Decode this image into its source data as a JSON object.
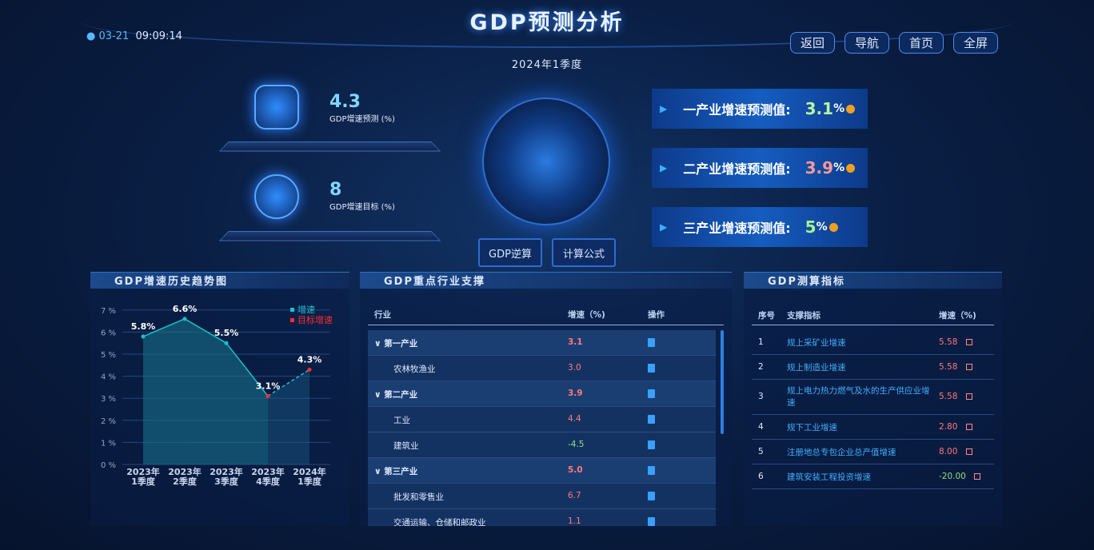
{
  "header": {
    "title": "GDP预测分析",
    "date": "03-21",
    "time": "09:09:14",
    "period": "2024年1季度",
    "nav": [
      "返回",
      "导航",
      "首页",
      "全屏"
    ]
  },
  "kpis": [
    {
      "value": "4.3",
      "label": "GDP增速预测 (%)"
    },
    {
      "value": "8",
      "label": "GDP增速目标 (%)"
    }
  ],
  "buttons": [
    "GDP逆算",
    "计算公式"
  ],
  "forecasts": [
    {
      "label": "一产业增速预测值:",
      "value": "3.1",
      "unit": "%",
      "color": "#b8f5a0"
    },
    {
      "label": "二产业增速预测值:",
      "value": "3.9",
      "unit": "%",
      "color": "#ff9a9a"
    },
    {
      "label": "三产业增速预测值:",
      "value": "5",
      "unit": "%",
      "color": "#a6f58a"
    }
  ],
  "panels": [
    "GDP增速历史趋势图",
    "GDP重点行业支撑",
    "GDP测算指标"
  ],
  "chart_data": {
    "type": "line",
    "categories": [
      "2023年\n1季度",
      "2023年\n2季度",
      "2023年\n3季度",
      "2023年\n4季度",
      "2024年\n1季度"
    ],
    "series": [
      {
        "name": "增速",
        "color": "#19c3c9",
        "values": [
          5.8,
          6.6,
          5.5,
          3.1,
          null
        ],
        "value_labels": [
          "5.8%",
          "6.6%",
          "5.5%",
          "3.1%",
          null
        ]
      },
      {
        "name": "目标增速",
        "color": "#ff2d2d",
        "values": [
          null,
          null,
          null,
          3.1,
          4.3
        ],
        "value_labels": [
          null,
          null,
          null,
          null,
          "4.3%"
        ]
      }
    ],
    "ylim": [
      0,
      7.5
    ],
    "yticks": [
      {
        "value": 0,
        "label": "0 %"
      },
      {
        "value": 1,
        "label": "1 %"
      },
      {
        "value": 2,
        "label": "2 %"
      },
      {
        "value": 3,
        "label": "3 %"
      },
      {
        "value": 4,
        "label": "4 %"
      },
      {
        "value": 5,
        "label": "5 %"
      },
      {
        "value": 6,
        "label": "6 %"
      },
      {
        "value": 7,
        "label": "7 %"
      }
    ],
    "grid": true,
    "legend": "top-right"
  },
  "industry_table": {
    "header": [
      "行业",
      "增速（%)",
      "操作"
    ],
    "groups": [
      {
        "name": "第一产业",
        "growth": "3.1",
        "children": [
          {
            "name": "农林牧渔业",
            "growth": "3.0"
          }
        ]
      },
      {
        "name": "第二产业",
        "growth": "3.9",
        "children": [
          {
            "name": "工业",
            "growth": "4.4"
          },
          {
            "name": "建筑业",
            "growth": "-4.5"
          }
        ]
      },
      {
        "name": "第三产业",
        "growth": "5.0",
        "children": [
          {
            "name": "批发和零售业",
            "growth": "6.7"
          },
          {
            "name": "交通运输、仓储和邮政业",
            "growth": "1.1"
          }
        ]
      }
    ]
  },
  "indicator_table": {
    "header": [
      "序号",
      "支撑指标",
      "增速（%)"
    ],
    "rows": [
      [
        "1",
        "规上采矿业增速",
        "5.58"
      ],
      [
        "2",
        "规上制造业增速",
        "5.58"
      ],
      [
        "3",
        "规上电力热力燃气及水的生产供应业增速",
        "5.58"
      ],
      [
        "4",
        "规下工业增速",
        "2.80"
      ],
      [
        "5",
        "注册地总专包企业总产值增速",
        "8.00"
      ],
      [
        "6",
        "建筑安装工程投资增速",
        "-20.00"
      ]
    ]
  }
}
